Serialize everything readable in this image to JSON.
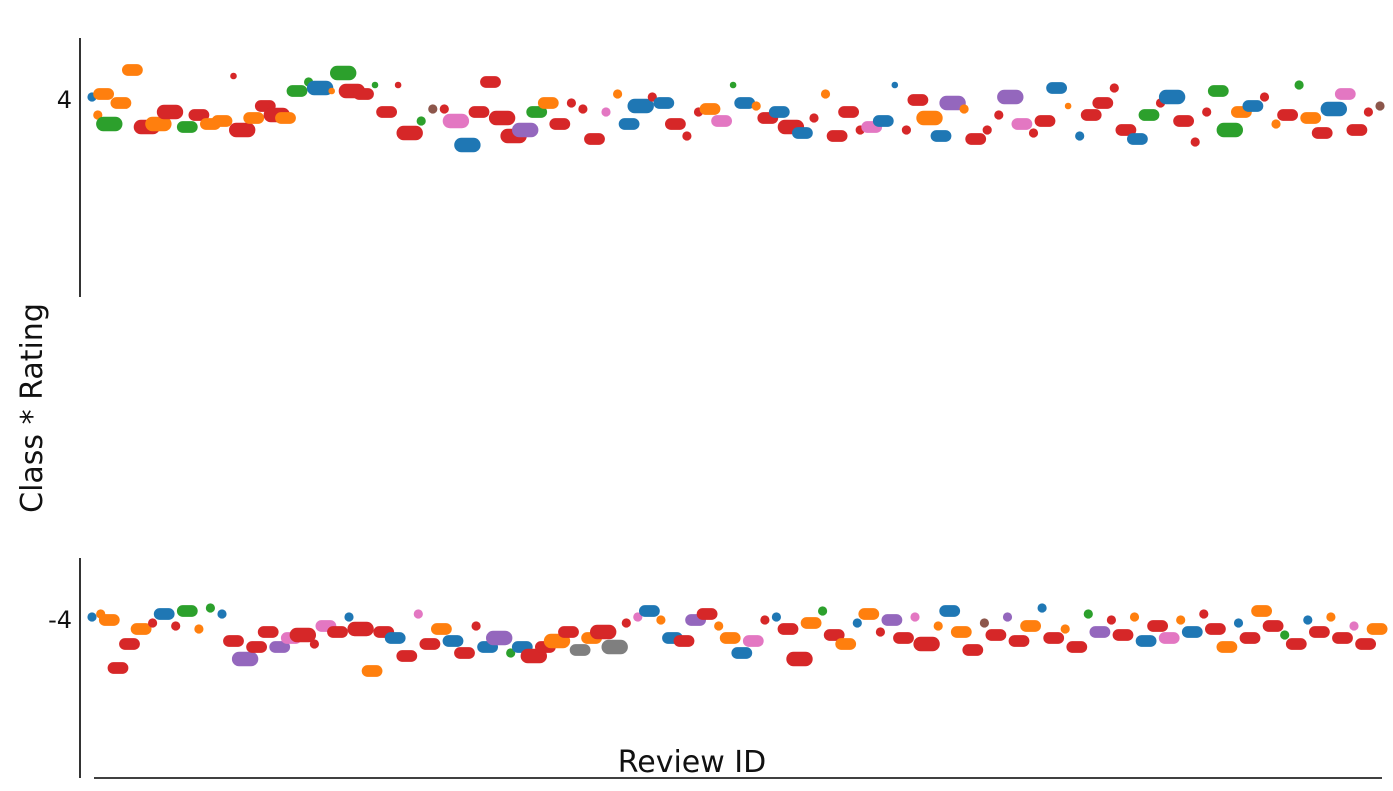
{
  "chart_data": {
    "type": "scatter",
    "xlabel": "Review ID",
    "ylabel": "Class * Rating",
    "y_ticks": [
      "4",
      "-4"
    ],
    "grid": false,
    "legend": "none",
    "marker": "rounded horizontal pill, size varies",
    "series_colors": {
      "blue": "#1f77b4",
      "orange": "#ff7f0e",
      "green": "#2ca02c",
      "red": "#d62728",
      "purple": "#9467bd",
      "brown": "#8c564b",
      "pink": "#e377c2",
      "gray": "#7f7f7f"
    },
    "upper_band": [
      [
        0,
        4.1,
        "blue",
        2
      ],
      [
        2,
        3.5,
        "orange",
        2
      ],
      [
        4,
        4.2,
        "orange",
        3
      ],
      [
        6,
        3.2,
        "green",
        4
      ],
      [
        10,
        3.9,
        "orange",
        3
      ],
      [
        14,
        5.0,
        "orange",
        3
      ],
      [
        19,
        3.1,
        "red",
        4
      ],
      [
        23,
        3.2,
        "orange",
        4
      ],
      [
        27,
        3.6,
        "red",
        4
      ],
      [
        33,
        3.1,
        "green",
        3
      ],
      [
        37,
        3.5,
        "red",
        3
      ],
      [
        41,
        3.2,
        "orange",
        3
      ],
      [
        45,
        3.3,
        "orange",
        3
      ],
      [
        49,
        4.8,
        "red",
        1
      ],
      [
        52,
        3.0,
        "red",
        4
      ],
      [
        56,
        3.4,
        "orange",
        3
      ],
      [
        60,
        3.8,
        "red",
        3
      ],
      [
        64,
        3.5,
        "red",
        4
      ],
      [
        67,
        3.4,
        "orange",
        3
      ],
      [
        71,
        4.3,
        "green",
        3
      ],
      [
        75,
        4.6,
        "green",
        2
      ],
      [
        79,
        4.4,
        "blue",
        4
      ],
      [
        83,
        4.3,
        "orange",
        1
      ],
      [
        87,
        4.9,
        "green",
        4
      ],
      [
        90,
        4.3,
        "red",
        4
      ],
      [
        94,
        4.2,
        "red",
        3
      ],
      [
        98,
        4.5,
        "green",
        1
      ],
      [
        102,
        3.6,
        "red",
        3
      ],
      [
        106,
        4.5,
        "red",
        1
      ],
      [
        110,
        2.9,
        "red",
        4
      ],
      [
        114,
        3.3,
        "green",
        2
      ],
      [
        118,
        3.7,
        "brown",
        2
      ],
      [
        122,
        3.7,
        "red",
        2
      ],
      [
        126,
        3.3,
        "pink",
        4
      ],
      [
        130,
        2.5,
        "blue",
        4
      ],
      [
        134,
        3.6,
        "red",
        3
      ],
      [
        138,
        4.6,
        "red",
        3
      ],
      [
        142,
        3.4,
        "red",
        4
      ],
      [
        146,
        2.8,
        "red",
        4
      ],
      [
        150,
        3.0,
        "purple",
        4
      ],
      [
        154,
        3.6,
        "green",
        3
      ],
      [
        158,
        3.9,
        "orange",
        3
      ],
      [
        162,
        3.2,
        "red",
        3
      ],
      [
        166,
        3.9,
        "red",
        2
      ],
      [
        170,
        3.7,
        "red",
        2
      ],
      [
        174,
        2.7,
        "red",
        3
      ],
      [
        178,
        3.6,
        "pink",
        2
      ],
      [
        182,
        4.2,
        "orange",
        2
      ],
      [
        186,
        3.2,
        "blue",
        3
      ],
      [
        190,
        3.8,
        "blue",
        4
      ],
      [
        194,
        4.1,
        "red",
        2
      ],
      [
        198,
        3.9,
        "blue",
        3
      ],
      [
        202,
        3.2,
        "red",
        3
      ],
      [
        206,
        2.8,
        "red",
        2
      ],
      [
        210,
        3.6,
        "red",
        2
      ],
      [
        214,
        3.7,
        "orange",
        3
      ],
      [
        218,
        3.3,
        "pink",
        3
      ],
      [
        222,
        4.5,
        "green",
        1
      ],
      [
        226,
        3.9,
        "blue",
        3
      ],
      [
        230,
        3.8,
        "orange",
        2
      ],
      [
        234,
        3.4,
        "red",
        3
      ],
      [
        238,
        3.6,
        "blue",
        3
      ],
      [
        242,
        3.1,
        "red",
        4
      ],
      [
        246,
        2.9,
        "blue",
        3
      ],
      [
        250,
        3.4,
        "red",
        2
      ],
      [
        254,
        4.2,
        "orange",
        2
      ],
      [
        258,
        2.8,
        "red",
        3
      ],
      [
        262,
        3.6,
        "red",
        3
      ],
      [
        266,
        3.0,
        "red",
        2
      ],
      [
        270,
        3.1,
        "pink",
        3
      ],
      [
        274,
        3.3,
        "blue",
        3
      ],
      [
        278,
        4.5,
        "blue",
        1
      ],
      [
        282,
        3.0,
        "red",
        2
      ],
      [
        286,
        4.0,
        "red",
        3
      ],
      [
        290,
        3.4,
        "orange",
        4
      ],
      [
        294,
        2.8,
        "blue",
        3
      ],
      [
        298,
        3.9,
        "purple",
        4
      ],
      [
        302,
        3.7,
        "orange",
        2
      ],
      [
        306,
        2.7,
        "red",
        3
      ],
      [
        310,
        3.0,
        "red",
        2
      ],
      [
        314,
        3.5,
        "red",
        2
      ],
      [
        318,
        4.1,
        "purple",
        4
      ],
      [
        322,
        3.2,
        "pink",
        3
      ],
      [
        326,
        2.9,
        "red",
        2
      ],
      [
        330,
        3.3,
        "red",
        3
      ],
      [
        334,
        4.4,
        "blue",
        3
      ],
      [
        338,
        3.8,
        "orange",
        1
      ],
      [
        342,
        2.8,
        "blue",
        2
      ],
      [
        346,
        3.5,
        "red",
        3
      ],
      [
        350,
        3.9,
        "red",
        3
      ],
      [
        354,
        4.4,
        "red",
        2
      ],
      [
        358,
        3.0,
        "red",
        3
      ],
      [
        362,
        2.7,
        "blue",
        3
      ],
      [
        366,
        3.5,
        "green",
        3
      ],
      [
        370,
        3.9,
        "red",
        2
      ],
      [
        374,
        4.1,
        "blue",
        4
      ],
      [
        378,
        3.3,
        "red",
        3
      ],
      [
        382,
        2.6,
        "red",
        2
      ],
      [
        386,
        3.6,
        "red",
        2
      ],
      [
        390,
        4.3,
        "green",
        3
      ],
      [
        394,
        3.0,
        "green",
        4
      ],
      [
        398,
        3.6,
        "orange",
        3
      ],
      [
        402,
        3.8,
        "blue",
        3
      ],
      [
        406,
        4.1,
        "red",
        2
      ],
      [
        410,
        3.2,
        "orange",
        2
      ],
      [
        414,
        3.5,
        "red",
        3
      ],
      [
        418,
        4.5,
        "green",
        2
      ],
      [
        422,
        3.4,
        "orange",
        3
      ],
      [
        426,
        2.9,
        "red",
        3
      ],
      [
        430,
        3.7,
        "blue",
        4
      ],
      [
        434,
        4.2,
        "pink",
        3
      ],
      [
        438,
        3.0,
        "red",
        3
      ],
      [
        442,
        3.6,
        "red",
        2
      ],
      [
        446,
        3.8,
        "brown",
        2
      ]
    ],
    "lower_band": [
      [
        0,
        -3.9,
        "blue",
        2
      ],
      [
        3,
        -3.8,
        "orange",
        2
      ],
      [
        6,
        -4.0,
        "orange",
        3
      ],
      [
        9,
        -5.6,
        "red",
        3
      ],
      [
        13,
        -4.8,
        "red",
        3
      ],
      [
        17,
        -4.3,
        "orange",
        3
      ],
      [
        21,
        -4.1,
        "red",
        2
      ],
      [
        25,
        -3.8,
        "blue",
        3
      ],
      [
        29,
        -4.2,
        "red",
        2
      ],
      [
        33,
        -3.7,
        "green",
        3
      ],
      [
        37,
        -4.3,
        "orange",
        2
      ],
      [
        41,
        -3.6,
        "green",
        2
      ],
      [
        45,
        -3.8,
        "blue",
        2
      ],
      [
        49,
        -4.7,
        "red",
        3
      ],
      [
        53,
        -5.3,
        "purple",
        4
      ],
      [
        57,
        -4.9,
        "red",
        3
      ],
      [
        61,
        -4.4,
        "red",
        3
      ],
      [
        65,
        -4.9,
        "purple",
        3
      ],
      [
        69,
        -4.6,
        "pink",
        3
      ],
      [
        73,
        -4.5,
        "red",
        4
      ],
      [
        77,
        -4.8,
        "red",
        2
      ],
      [
        81,
        -4.2,
        "pink",
        3
      ],
      [
        85,
        -4.4,
        "red",
        3
      ],
      [
        89,
        -3.9,
        "blue",
        2
      ],
      [
        93,
        -4.3,
        "red",
        4
      ],
      [
        97,
        -5.7,
        "orange",
        3
      ],
      [
        101,
        -4.4,
        "red",
        3
      ],
      [
        105,
        -4.6,
        "blue",
        3
      ],
      [
        109,
        -5.2,
        "red",
        3
      ],
      [
        113,
        -3.8,
        "pink",
        2
      ],
      [
        117,
        -4.8,
        "red",
        3
      ],
      [
        121,
        -4.3,
        "orange",
        3
      ],
      [
        125,
        -4.7,
        "blue",
        3
      ],
      [
        129,
        -5.1,
        "red",
        3
      ],
      [
        133,
        -4.2,
        "red",
        2
      ],
      [
        137,
        -4.9,
        "blue",
        3
      ],
      [
        141,
        -4.6,
        "purple",
        4
      ],
      [
        145,
        -5.1,
        "green",
        2
      ],
      [
        149,
        -4.9,
        "blue",
        3
      ],
      [
        153,
        -5.2,
        "red",
        4
      ],
      [
        157,
        -4.9,
        "red",
        3
      ],
      [
        161,
        -4.7,
        "orange",
        4
      ],
      [
        165,
        -4.4,
        "red",
        3
      ],
      [
        169,
        -5.0,
        "gray",
        3
      ],
      [
        173,
        -4.6,
        "orange",
        3
      ],
      [
        177,
        -4.4,
        "red",
        4
      ],
      [
        181,
        -4.9,
        "gray",
        4
      ],
      [
        185,
        -4.1,
        "red",
        2
      ],
      [
        189,
        -3.9,
        "pink",
        2
      ],
      [
        193,
        -3.7,
        "blue",
        3
      ],
      [
        197,
        -4.0,
        "orange",
        2
      ],
      [
        201,
        -4.6,
        "blue",
        3
      ],
      [
        205,
        -4.7,
        "red",
        3
      ],
      [
        209,
        -4.0,
        "purple",
        3
      ],
      [
        213,
        -3.8,
        "red",
        3
      ],
      [
        217,
        -4.2,
        "orange",
        2
      ],
      [
        221,
        -4.6,
        "orange",
        3
      ],
      [
        225,
        -5.1,
        "blue",
        3
      ],
      [
        229,
        -4.7,
        "pink",
        3
      ],
      [
        233,
        -4.0,
        "red",
        2
      ],
      [
        237,
        -3.9,
        "blue",
        2
      ],
      [
        241,
        -4.3,
        "red",
        3
      ],
      [
        245,
        -5.3,
        "red",
        4
      ],
      [
        249,
        -4.1,
        "orange",
        3
      ],
      [
        253,
        -3.7,
        "green",
        2
      ],
      [
        257,
        -4.5,
        "red",
        3
      ],
      [
        261,
        -4.8,
        "orange",
        3
      ],
      [
        265,
        -4.1,
        "blue",
        2
      ],
      [
        269,
        -3.8,
        "orange",
        3
      ],
      [
        273,
        -4.4,
        "red",
        2
      ],
      [
        277,
        -4.0,
        "purple",
        3
      ],
      [
        281,
        -4.6,
        "red",
        3
      ],
      [
        285,
        -3.9,
        "pink",
        2
      ],
      [
        289,
        -4.8,
        "red",
        4
      ],
      [
        293,
        -4.2,
        "orange",
        2
      ],
      [
        297,
        -3.7,
        "blue",
        3
      ],
      [
        301,
        -4.4,
        "orange",
        3
      ],
      [
        305,
        -5.0,
        "red",
        3
      ],
      [
        309,
        -4.1,
        "brown",
        2
      ],
      [
        313,
        -4.5,
        "red",
        3
      ],
      [
        317,
        -3.9,
        "purple",
        2
      ],
      [
        321,
        -4.7,
        "red",
        3
      ],
      [
        325,
        -4.2,
        "orange",
        3
      ],
      [
        329,
        -3.6,
        "blue",
        2
      ],
      [
        333,
        -4.6,
        "red",
        3
      ],
      [
        337,
        -4.3,
        "orange",
        2
      ],
      [
        341,
        -4.9,
        "red",
        3
      ],
      [
        345,
        -3.8,
        "green",
        2
      ],
      [
        349,
        -4.4,
        "purple",
        3
      ],
      [
        353,
        -4.0,
        "red",
        2
      ],
      [
        357,
        -4.5,
        "red",
        3
      ],
      [
        361,
        -3.9,
        "orange",
        2
      ],
      [
        365,
        -4.7,
        "blue",
        3
      ],
      [
        369,
        -4.2,
        "red",
        3
      ],
      [
        373,
        -4.6,
        "pink",
        3
      ],
      [
        377,
        -4.0,
        "orange",
        2
      ],
      [
        381,
        -4.4,
        "blue",
        3
      ],
      [
        385,
        -3.8,
        "red",
        2
      ],
      [
        389,
        -4.3,
        "red",
        3
      ],
      [
        393,
        -4.9,
        "orange",
        3
      ],
      [
        397,
        -4.1,
        "blue",
        2
      ],
      [
        401,
        -4.6,
        "red",
        3
      ],
      [
        405,
        -3.7,
        "orange",
        3
      ],
      [
        409,
        -4.2,
        "red",
        3
      ],
      [
        413,
        -4.5,
        "green",
        2
      ],
      [
        417,
        -4.8,
        "red",
        3
      ],
      [
        421,
        -4.0,
        "blue",
        2
      ],
      [
        425,
        -4.4,
        "red",
        3
      ],
      [
        429,
        -3.9,
        "orange",
        2
      ],
      [
        433,
        -4.6,
        "red",
        3
      ],
      [
        437,
        -4.2,
        "pink",
        2
      ],
      [
        441,
        -4.8,
        "red",
        3
      ],
      [
        445,
        -4.3,
        "orange",
        3
      ]
    ]
  }
}
